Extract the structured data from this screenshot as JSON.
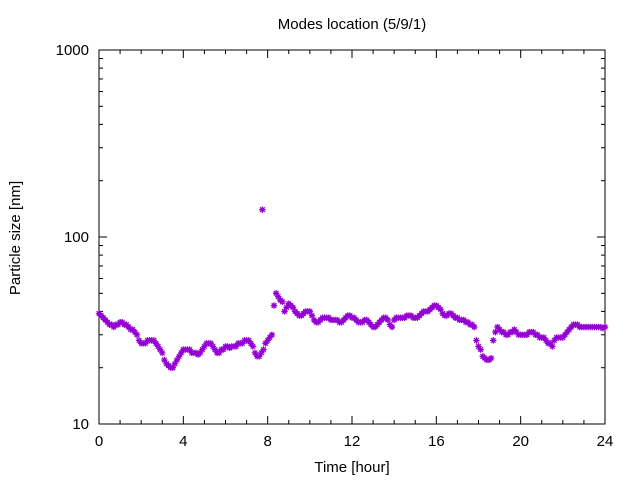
{
  "chart_data": {
    "type": "scatter",
    "title": "Modes location (5/9/1)",
    "xlabel": "Time [hour]",
    "ylabel": "Particle size [nm]",
    "xlim": [
      0,
      24
    ],
    "ylim": [
      10,
      1000
    ],
    "yscale": "log",
    "grid": false,
    "legend": "none",
    "color": "#9400d3",
    "marker": "asterisk",
    "xticks": [
      0,
      4,
      8,
      12,
      16,
      20,
      24
    ],
    "xtick_labels": [
      "0",
      "4",
      "8",
      "12",
      "16",
      "20",
      "24"
    ],
    "yticks": [
      10,
      100,
      1000
    ],
    "ytick_labels": [
      "10",
      "100",
      "1000"
    ],
    "points": [
      [
        0.0,
        39
      ],
      [
        0.1,
        38
      ],
      [
        0.2,
        37
      ],
      [
        0.3,
        36
      ],
      [
        0.4,
        35
      ],
      [
        0.5,
        34
      ],
      [
        0.6,
        34
      ],
      [
        0.7,
        33
      ],
      [
        0.8,
        34
      ],
      [
        0.9,
        34
      ],
      [
        1.0,
        35
      ],
      [
        1.1,
        35
      ],
      [
        1.2,
        34
      ],
      [
        1.3,
        34
      ],
      [
        1.4,
        33
      ],
      [
        1.5,
        32
      ],
      [
        1.6,
        32
      ],
      [
        1.7,
        31
      ],
      [
        1.8,
        30
      ],
      [
        1.9,
        28
      ],
      [
        2.0,
        27
      ],
      [
        2.1,
        27
      ],
      [
        2.2,
        27
      ],
      [
        2.3,
        28
      ],
      [
        2.4,
        28
      ],
      [
        2.5,
        28
      ],
      [
        2.6,
        28
      ],
      [
        2.7,
        27
      ],
      [
        2.8,
        26
      ],
      [
        2.9,
        25
      ],
      [
        3.0,
        24
      ],
      [
        3.1,
        22
      ],
      [
        3.2,
        21
      ],
      [
        3.3,
        20.5
      ],
      [
        3.4,
        20
      ],
      [
        3.5,
        20
      ],
      [
        3.6,
        21
      ],
      [
        3.7,
        22
      ],
      [
        3.8,
        23
      ],
      [
        3.9,
        24
      ],
      [
        4.0,
        25
      ],
      [
        4.1,
        25
      ],
      [
        4.2,
        25
      ],
      [
        4.3,
        25
      ],
      [
        4.4,
        24
      ],
      [
        4.5,
        24
      ],
      [
        4.6,
        24
      ],
      [
        4.7,
        23.5
      ],
      [
        4.8,
        24
      ],
      [
        4.9,
        25
      ],
      [
        5.0,
        26
      ],
      [
        5.1,
        27
      ],
      [
        5.2,
        27
      ],
      [
        5.3,
        27
      ],
      [
        5.4,
        26
      ],
      [
        5.5,
        25
      ],
      [
        5.6,
        24
      ],
      [
        5.7,
        24
      ],
      [
        5.8,
        25
      ],
      [
        5.9,
        25
      ],
      [
        6.0,
        26
      ],
      [
        6.1,
        26
      ],
      [
        6.2,
        25.5
      ],
      [
        6.3,
        26
      ],
      [
        6.4,
        26
      ],
      [
        6.5,
        26
      ],
      [
        6.6,
        27
      ],
      [
        6.7,
        27
      ],
      [
        6.8,
        27
      ],
      [
        6.9,
        28
      ],
      [
        7.0,
        28
      ],
      [
        7.1,
        28
      ],
      [
        7.2,
        27
      ],
      [
        7.3,
        26
      ],
      [
        7.4,
        24
      ],
      [
        7.5,
        23
      ],
      [
        7.6,
        23
      ],
      [
        7.7,
        24
      ],
      [
        7.75,
        140
      ],
      [
        7.8,
        25
      ],
      [
        7.9,
        27
      ],
      [
        8.0,
        28
      ],
      [
        8.1,
        29
      ],
      [
        8.2,
        30
      ],
      [
        8.3,
        43
      ],
      [
        8.4,
        50
      ],
      [
        8.5,
        48
      ],
      [
        8.6,
        46
      ],
      [
        8.7,
        45
      ],
      [
        8.8,
        40
      ],
      [
        8.9,
        42
      ],
      [
        9.0,
        44
      ],
      [
        9.1,
        43
      ],
      [
        9.2,
        42
      ],
      [
        9.3,
        40
      ],
      [
        9.4,
        39
      ],
      [
        9.5,
        38
      ],
      [
        9.6,
        38
      ],
      [
        9.7,
        39
      ],
      [
        9.8,
        40
      ],
      [
        9.9,
        40
      ],
      [
        10.0,
        40
      ],
      [
        10.1,
        38
      ],
      [
        10.2,
        36
      ],
      [
        10.3,
        35
      ],
      [
        10.4,
        35
      ],
      [
        10.5,
        36
      ],
      [
        10.6,
        37
      ],
      [
        10.7,
        37
      ],
      [
        10.8,
        37
      ],
      [
        10.9,
        37
      ],
      [
        11.0,
        36
      ],
      [
        11.1,
        36
      ],
      [
        11.2,
        36
      ],
      [
        11.3,
        36
      ],
      [
        11.4,
        35
      ],
      [
        11.5,
        35
      ],
      [
        11.6,
        36
      ],
      [
        11.7,
        37
      ],
      [
        11.8,
        38
      ],
      [
        11.9,
        38
      ],
      [
        12.0,
        37
      ],
      [
        12.1,
        37
      ],
      [
        12.2,
        36
      ],
      [
        12.3,
        35
      ],
      [
        12.4,
        35
      ],
      [
        12.5,
        35
      ],
      [
        12.6,
        36
      ],
      [
        12.7,
        36
      ],
      [
        12.8,
        35
      ],
      [
        12.9,
        34
      ],
      [
        13.0,
        33
      ],
      [
        13.1,
        33
      ],
      [
        13.2,
        34
      ],
      [
        13.3,
        35
      ],
      [
        13.4,
        36
      ],
      [
        13.5,
        37
      ],
      [
        13.6,
        37
      ],
      [
        13.7,
        36
      ],
      [
        13.8,
        34
      ],
      [
        13.9,
        33
      ],
      [
        14.0,
        36
      ],
      [
        14.1,
        37
      ],
      [
        14.2,
        37
      ],
      [
        14.3,
        37
      ],
      [
        14.4,
        37
      ],
      [
        14.5,
        37
      ],
      [
        14.6,
        38
      ],
      [
        14.7,
        38
      ],
      [
        14.8,
        38
      ],
      [
        14.9,
        37
      ],
      [
        15.0,
        37
      ],
      [
        15.1,
        37
      ],
      [
        15.2,
        38
      ],
      [
        15.3,
        39
      ],
      [
        15.4,
        40
      ],
      [
        15.5,
        40
      ],
      [
        15.6,
        40
      ],
      [
        15.7,
        41
      ],
      [
        15.8,
        42
      ],
      [
        15.9,
        43
      ],
      [
        16.0,
        43
      ],
      [
        16.1,
        42
      ],
      [
        16.2,
        41
      ],
      [
        16.3,
        39
      ],
      [
        16.4,
        38
      ],
      [
        16.5,
        38
      ],
      [
        16.6,
        39
      ],
      [
        16.7,
        39
      ],
      [
        16.8,
        38
      ],
      [
        16.9,
        37
      ],
      [
        17.0,
        37
      ],
      [
        17.1,
        36
      ],
      [
        17.2,
        36
      ],
      [
        17.3,
        36
      ],
      [
        17.4,
        35
      ],
      [
        17.5,
        35
      ],
      [
        17.6,
        34
      ],
      [
        17.7,
        34
      ],
      [
        17.8,
        33
      ],
      [
        17.9,
        28
      ],
      [
        18.0,
        26
      ],
      [
        18.1,
        25
      ],
      [
        18.2,
        23
      ],
      [
        18.3,
        22.5
      ],
      [
        18.4,
        22
      ],
      [
        18.5,
        22
      ],
      [
        18.6,
        22.5
      ],
      [
        18.7,
        28
      ],
      [
        18.8,
        31
      ],
      [
        18.9,
        33
      ],
      [
        19.0,
        32
      ],
      [
        19.1,
        31
      ],
      [
        19.2,
        31
      ],
      [
        19.3,
        30
      ],
      [
        19.4,
        30
      ],
      [
        19.5,
        31
      ],
      [
        19.6,
        31
      ],
      [
        19.7,
        32
      ],
      [
        19.8,
        31
      ],
      [
        19.9,
        30
      ],
      [
        20.0,
        30
      ],
      [
        20.1,
        30
      ],
      [
        20.2,
        30
      ],
      [
        20.3,
        30
      ],
      [
        20.4,
        31
      ],
      [
        20.5,
        31
      ],
      [
        20.6,
        31
      ],
      [
        20.7,
        30
      ],
      [
        20.8,
        30
      ],
      [
        20.9,
        29
      ],
      [
        21.0,
        29
      ],
      [
        21.1,
        29
      ],
      [
        21.2,
        28
      ],
      [
        21.3,
        27
      ],
      [
        21.4,
        27
      ],
      [
        21.5,
        26
      ],
      [
        21.6,
        28
      ],
      [
        21.7,
        29
      ],
      [
        21.8,
        29
      ],
      [
        21.9,
        29
      ],
      [
        22.0,
        29
      ],
      [
        22.1,
        30
      ],
      [
        22.2,
        31
      ],
      [
        22.3,
        32
      ],
      [
        22.4,
        33
      ],
      [
        22.5,
        34
      ],
      [
        22.6,
        34
      ],
      [
        22.7,
        34
      ],
      [
        22.8,
        33
      ],
      [
        22.9,
        33
      ],
      [
        23.0,
        33
      ],
      [
        23.1,
        33
      ],
      [
        23.2,
        33
      ],
      [
        23.3,
        33
      ],
      [
        23.4,
        33
      ],
      [
        23.5,
        33
      ],
      [
        23.6,
        33
      ],
      [
        23.7,
        33
      ],
      [
        23.8,
        33
      ],
      [
        23.9,
        32.5
      ],
      [
        24.0,
        33
      ]
    ]
  }
}
